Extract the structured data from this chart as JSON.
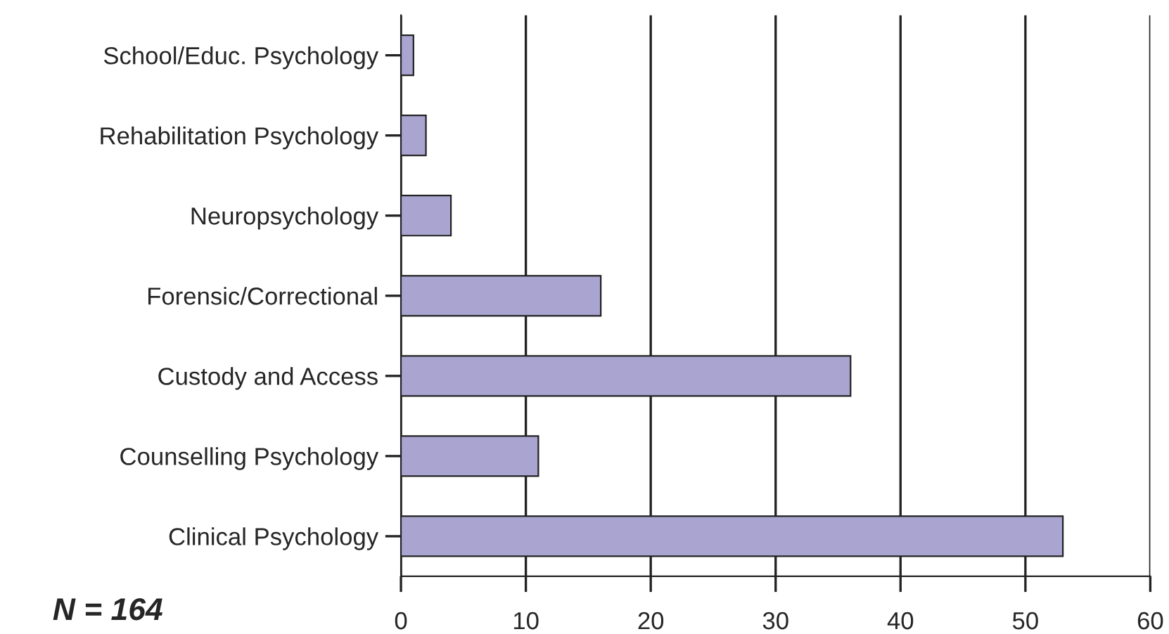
{
  "chart_data": {
    "type": "bar",
    "orientation": "horizontal",
    "categories": [
      "School/Educ. Psychology",
      "Rehabilitation Psychology",
      "Neuropsychology",
      "Forensic/Correctional",
      "Custody and Access",
      "Counselling Psychology",
      "Clinical Psychology"
    ],
    "values": [
      1,
      2,
      4,
      16,
      36,
      11,
      53
    ],
    "color": "#a9a5d0",
    "xlim": [
      0,
      60
    ],
    "xticks": [
      0,
      10,
      20,
      30,
      40,
      50,
      60
    ],
    "grid": "x",
    "annotations": [
      "N = 164"
    ]
  }
}
